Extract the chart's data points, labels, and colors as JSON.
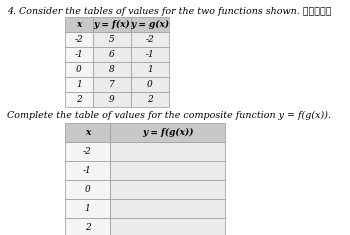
{
  "title": "4. Consider the tables of values for the two functions shown. ✓✓✓✓✓",
  "table1_headers": [
    "x",
    "y = f(x)",
    "y = g(x)"
  ],
  "table1_data": [
    [
      "-2",
      "5",
      "-2"
    ],
    [
      "-1",
      "6",
      "-1"
    ],
    [
      "0",
      "8",
      "1"
    ],
    [
      "1",
      "7",
      "0"
    ],
    [
      "2",
      "9",
      "2"
    ]
  ],
  "complete_text": "Complete the table of values for the composite function y = f(g(x)).",
  "table2_header_x": "x",
  "table2_header_y": "y = f(g(x))",
  "table2_x": [
    "-2",
    "-1",
    "0",
    "1",
    "2"
  ],
  "bg_color": "#ffffff",
  "header_bg": "#c8c8c8",
  "row_gray_bg": "#d8d8d8",
  "row_light_bg": "#ebebeb",
  "border_color": "#999999",
  "text_color": "#000000",
  "title_fontsize": 6.8,
  "table_fontsize": 6.5
}
